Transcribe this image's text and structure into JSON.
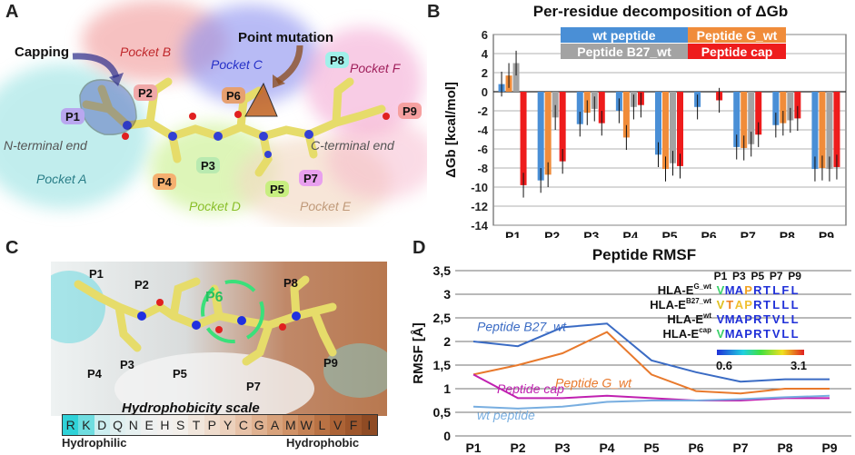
{
  "panels": {
    "a": {
      "letter": "A",
      "pockets": [
        "Pocket A",
        "Pocket B",
        "Pocket C",
        "Pocket D",
        "Pocket E",
        "Pocket F"
      ],
      "positions": [
        "P1",
        "P2",
        "P3",
        "P4",
        "P5",
        "P6",
        "P7",
        "P8",
        "P9"
      ],
      "capping_label": "Capping",
      "point_mutation_label": "Point mutation",
      "n_terminal_label": "N-terminal end",
      "c_terminal_label": "C-terminal end"
    },
    "b": {
      "letter": "B"
    },
    "c": {
      "letter": "C",
      "positions": [
        "P1",
        "P2",
        "P3",
        "P4",
        "P5",
        "P6",
        "P7",
        "P8",
        "P9"
      ],
      "scale_title": "Hydrophobicity scale",
      "scale_letters": [
        "R",
        "K",
        "D",
        "Q",
        "N",
        "E",
        "H",
        "S",
        "T",
        "P",
        "Y",
        "C",
        "G",
        "A",
        "M",
        "W",
        "L",
        "V",
        "F",
        "I"
      ],
      "scale_colors": [
        "#2fd2d8",
        "#6fdde0",
        "#cdeef0",
        "#dfeff0",
        "#e6f0f0",
        "#eef0f0",
        "#f2f0ee",
        "#f3efea",
        "#f1e6dc",
        "#efdccd",
        "#ecd1bd",
        "#e7c2a8",
        "#e0b291",
        "#d8a27b",
        "#d09267",
        "#c58255",
        "#b97244",
        "#ac6336",
        "#9e562c",
        "#8f4b24"
      ],
      "hydrophilic_label": "Hydrophilic",
      "hydrophobic_label": "Hydrophobic"
    },
    "d": {
      "letter": "D"
    }
  },
  "chart_data": [
    {
      "type": "bar",
      "title": "Per-residue decomposition of ΔGb",
      "xlabel": "",
      "ylabel": "ΔGb [kcal/mol]",
      "ylim": [
        -14,
        6
      ],
      "yticks": [
        6,
        4,
        2,
        0,
        -2,
        -4,
        -6,
        -8,
        -10,
        -12,
        -14
      ],
      "categories": [
        "P1",
        "P2",
        "P3",
        "P4",
        "P5",
        "P6",
        "P7",
        "P8",
        "P9"
      ],
      "legend": [
        "wt peptide",
        "Peptide G_wt",
        "Peptide B27_wt",
        "Peptide cap"
      ],
      "series": [
        {
          "name": "wt peptide",
          "color": "#4a8fd6",
          "values": [
            0.8,
            -9.3,
            -3.4,
            -2.0,
            -6.6,
            -1.6,
            -5.8,
            -3.5,
            -8.1
          ]
        },
        {
          "name": "Peptide G_wt",
          "color": "#f08c3a",
          "values": [
            1.7,
            -8.7,
            -2.2,
            -4.8,
            -8.1,
            0,
            -5.9,
            -3.3,
            -8.0
          ]
        },
        {
          "name": "Peptide B27_wt",
          "color": "#a3a3a3",
          "values": [
            3.0,
            -2.7,
            -1.8,
            -1.6,
            -7.5,
            0,
            -5.5,
            -3.0,
            -8.1
          ]
        },
        {
          "name": "Peptide cap",
          "color": "#ee1c1c",
          "values": [
            -9.8,
            -7.3,
            -3.3,
            -1.4,
            -7.8,
            -0.9,
            -4.5,
            -2.8,
            -7.9
          ]
        }
      ]
    },
    {
      "type": "line",
      "title": "Peptide RMSF",
      "xlabel": "",
      "ylabel": "RMSF [Å]",
      "ylim": [
        0,
        3.5
      ],
      "yticks": [
        "0",
        "0,5",
        "1",
        "1,5",
        "2",
        "2,5",
        "3",
        "3,5"
      ],
      "categories": [
        "P1",
        "P2",
        "P3",
        "P4",
        "P5",
        "P6",
        "P7",
        "P8",
        "P9"
      ],
      "series": [
        {
          "name": "Peptide B27_wt",
          "color": "#3a6bc4",
          "values": [
            2.0,
            1.9,
            2.3,
            2.38,
            1.6,
            1.35,
            1.15,
            1.2,
            1.2
          ]
        },
        {
          "name": "Peptide G_wt",
          "color": "#e8792c",
          "values": [
            1.3,
            1.5,
            1.75,
            2.2,
            1.3,
            0.95,
            0.9,
            1.0,
            1.0
          ]
        },
        {
          "name": "Peptide cap",
          "color": "#c020b0",
          "values": [
            1.3,
            0.8,
            0.8,
            0.85,
            0.8,
            0.75,
            0.75,
            0.8,
            0.8
          ]
        },
        {
          "name": "wt peptide",
          "color": "#78aee0",
          "values": [
            0.62,
            0.58,
            0.62,
            0.72,
            0.75,
            0.75,
            0.78,
            0.82,
            0.85
          ]
        }
      ],
      "series_labels": [
        "Peptide B27_wt",
        "Peptide G_wt",
        "Peptide cap",
        "wt peptide"
      ],
      "inset": {
        "columns": [
          "P1",
          "P3",
          "P5",
          "P7",
          "P9"
        ],
        "rows": [
          {
            "label": "HLA-E^G_wt",
            "base": "HLA-E",
            "sup": "G_wt",
            "seq": [
              "V",
              "M",
              "A",
              "P",
              "R",
              "T",
              "L",
              "F",
              "L"
            ]
          },
          {
            "label": "HLA-E^B27_wt",
            "base": "HLA-E",
            "sup": "B27_wt",
            "seq": [
              "V",
              "T",
              "A",
              "P",
              "R",
              "T",
              "L",
              "L",
              "L"
            ]
          },
          {
            "label": "HLA-E^wt",
            "base": "HLA-E",
            "sup": "wt",
            "seq": [
              "V",
              "M",
              "A",
              "P",
              "R",
              "T",
              "V",
              "L",
              "L"
            ]
          },
          {
            "label": "HLA-E^cap",
            "base": "HLA-E",
            "sup": "cap",
            "seq": [
              "V",
              "M",
              "A",
              "P",
              "R",
              "T",
              "V",
              "L",
              "L"
            ]
          }
        ],
        "seq_colors": [
          [
            "#3ad06a",
            "#2030d8",
            "#2030d8",
            "#f0a020",
            "#2030d8",
            "#2030d8",
            "#2030d8",
            "#2030d8",
            "#2030d8"
          ],
          [
            "#e0c020",
            "#f08020",
            "#f0c030",
            "#f0c030",
            "#2030d8",
            "#2030d8",
            "#2030d8",
            "#2030d8",
            "#2030d8"
          ],
          [
            "#2030d8",
            "#2030d8",
            "#2030d8",
            "#2030d8",
            "#2030d8",
            "#2030d8",
            "#2030d8",
            "#2030d8",
            "#2030d8"
          ],
          [
            "#3ad06a",
            "#2030d8",
            "#2030d8",
            "#2030d8",
            "#2030d8",
            "#2030d8",
            "#2030d8",
            "#2030d8",
            "#2030d8"
          ]
        ],
        "colorbar_min": "0.6",
        "colorbar_max": "3.1"
      }
    }
  ]
}
